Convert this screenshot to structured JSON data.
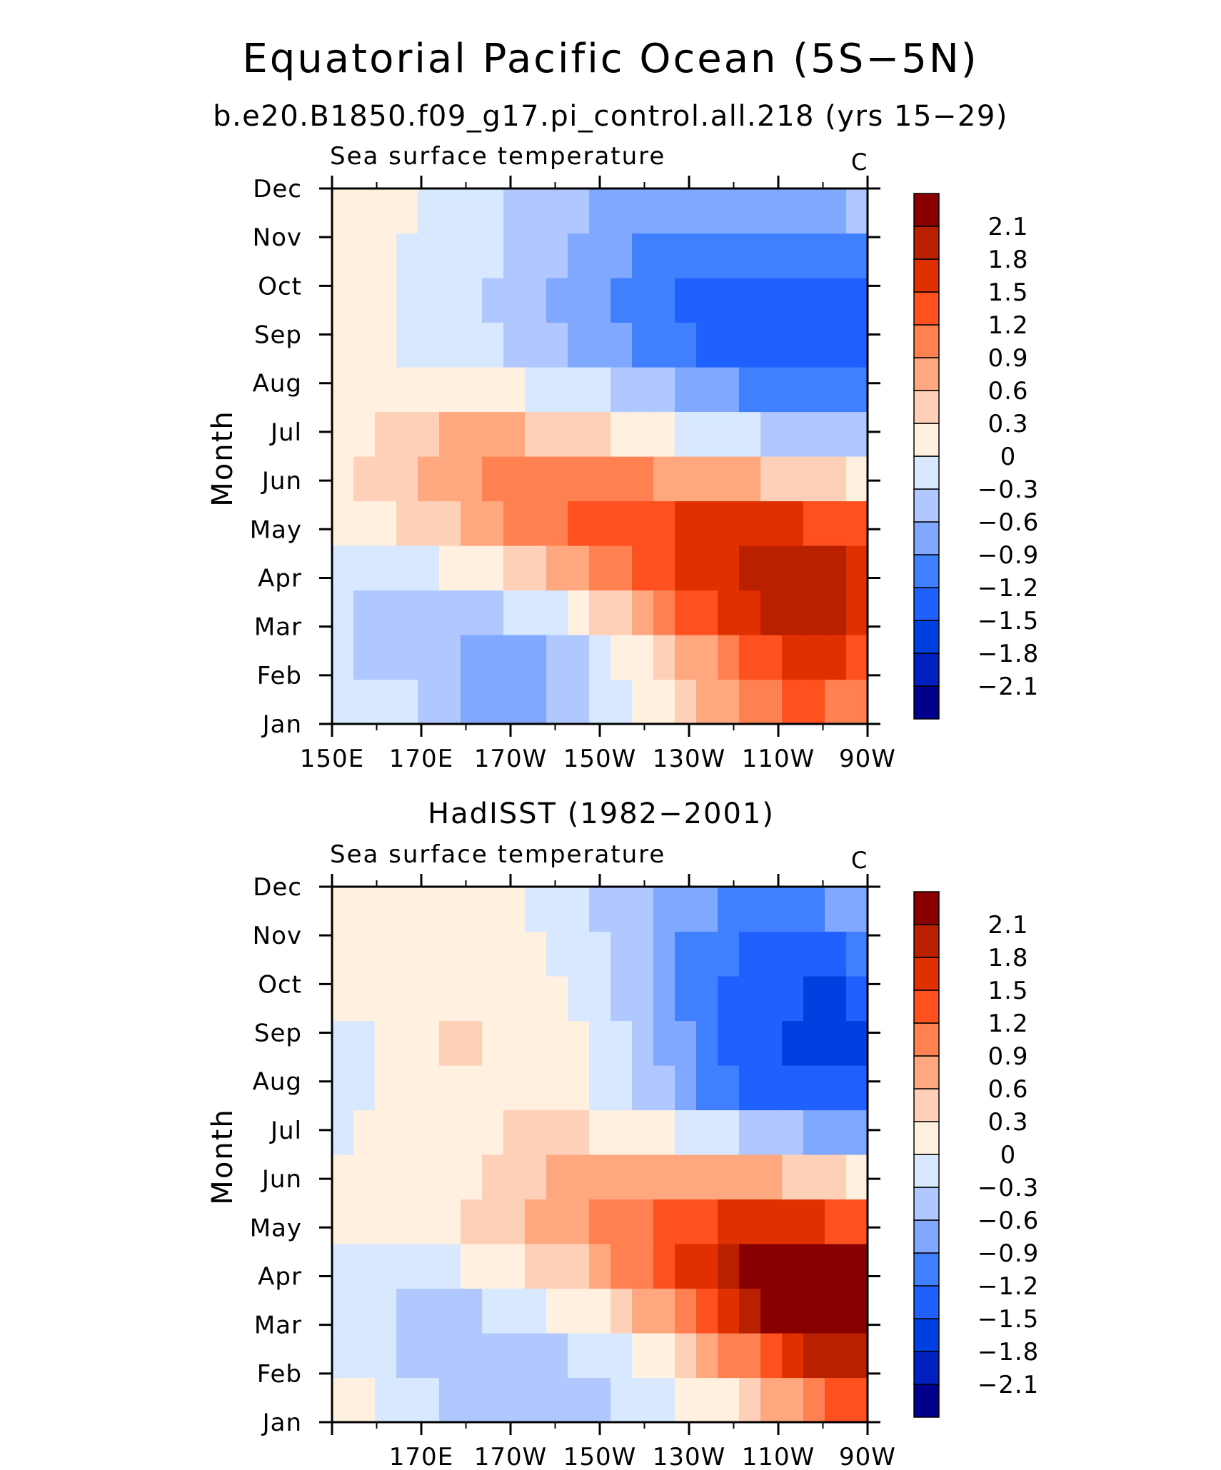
{
  "figure": {
    "title": "Equatorial Pacific Ocean (5S−5N)",
    "subtitle": "b.e20.B1850.f09_g17.pi_control.all.218 (yrs 15−29)"
  },
  "colorbar": {
    "colors": [
      "#00008c",
      "#0020c0",
      "#0040e0",
      "#2060ff",
      "#4080ff",
      "#80a8ff",
      "#b0c8ff",
      "#d8e8ff",
      "#fff0e0",
      "#ffd0b8",
      "#ffa880",
      "#ff8050",
      "#ff5020",
      "#e03000",
      "#b82000",
      "#880000"
    ],
    "labels": [
      "−2.1",
      "−1.8",
      "−1.5",
      "−1.2",
      "−0.9",
      "−0.6",
      "−0.3",
      "0",
      "0.3",
      "0.6",
      "0.9",
      "1.2",
      "1.5",
      "1.8",
      "2.1"
    ]
  },
  "chart_data": [
    {
      "type": "heatmap",
      "panel_title": "",
      "left_label": "Sea surface temperature",
      "right_label": "C",
      "ylabel": "Month",
      "xlabel": "",
      "x_ticks": [
        "150E",
        "170E",
        "170W",
        "150W",
        "130W",
        "110W",
        "90W"
      ],
      "y_ticks": [
        "Jan",
        "Feb",
        "Mar",
        "Apr",
        "May",
        "Jun",
        "Jul",
        "Aug",
        "Sep",
        "Oct",
        "Nov",
        "Dec"
      ],
      "x_lon": [
        150,
        155,
        160,
        165,
        170,
        175,
        180,
        185,
        190,
        195,
        200,
        205,
        210,
        215,
        220,
        225,
        230,
        235,
        240,
        245,
        250,
        255,
        260,
        265,
        270
      ],
      "values": [
        [
          -0.1,
          -0.1,
          -0.2,
          -0.3,
          -0.4,
          -0.5,
          -0.7,
          -0.8,
          -0.9,
          -0.8,
          -0.6,
          -0.5,
          -0.3,
          -0.2,
          0.0,
          0.2,
          0.4,
          0.6,
          0.8,
          1.0,
          1.1,
          1.2,
          1.2,
          1.1,
          1.0
        ],
        [
          -0.2,
          -0.4,
          -0.5,
          -0.6,
          -0.6,
          -0.6,
          -0.7,
          -0.8,
          -0.8,
          -0.7,
          -0.6,
          -0.4,
          -0.2,
          0.0,
          0.2,
          0.4,
          0.6,
          0.8,
          1.0,
          1.2,
          1.4,
          1.5,
          1.5,
          1.5,
          1.4
        ],
        [
          -0.2,
          -0.4,
          -0.5,
          -0.5,
          -0.5,
          -0.5,
          -0.4,
          -0.4,
          -0.3,
          -0.2,
          -0.1,
          0.1,
          0.3,
          0.5,
          0.8,
          1.0,
          1.2,
          1.4,
          1.6,
          1.7,
          1.8,
          1.8,
          1.8,
          1.8,
          1.7
        ],
        [
          -0.1,
          -0.2,
          -0.2,
          -0.2,
          -0.1,
          0.0,
          0.1,
          0.2,
          0.3,
          0.4,
          0.6,
          0.8,
          1.0,
          1.1,
          1.3,
          1.4,
          1.5,
          1.6,
          1.7,
          1.8,
          1.8,
          1.8,
          1.8,
          1.8,
          1.7
        ],
        [
          0.1,
          0.2,
          0.2,
          0.3,
          0.4,
          0.5,
          0.7,
          0.8,
          0.9,
          1.0,
          1.1,
          1.2,
          1.3,
          1.3,
          1.4,
          1.4,
          1.5,
          1.5,
          1.5,
          1.5,
          1.5,
          1.5,
          1.4,
          1.4,
          1.3
        ],
        [
          0.2,
          0.3,
          0.4,
          0.5,
          0.6,
          0.7,
          0.8,
          0.9,
          0.9,
          0.9,
          1.0,
          1.0,
          1.0,
          0.9,
          0.9,
          0.8,
          0.8,
          0.7,
          0.6,
          0.6,
          0.5,
          0.4,
          0.4,
          0.3,
          0.2
        ],
        [
          0.1,
          0.2,
          0.4,
          0.5,
          0.5,
          0.6,
          0.6,
          0.6,
          0.6,
          0.5,
          0.5,
          0.4,
          0.3,
          0.2,
          0.1,
          0.0,
          -0.1,
          -0.2,
          -0.3,
          -0.3,
          -0.4,
          -0.5,
          -0.5,
          -0.6,
          -0.6
        ],
        [
          0.1,
          0.1,
          0.1,
          0.1,
          0.1,
          0.0,
          0.0,
          0.0,
          0.0,
          -0.1,
          -0.1,
          -0.2,
          -0.3,
          -0.4,
          -0.5,
          -0.6,
          -0.7,
          -0.8,
          -0.9,
          -1.0,
          -1.1,
          -1.1,
          -1.2,
          -1.2,
          -1.2
        ],
        [
          0.1,
          0.1,
          0.0,
          -0.1,
          -0.2,
          -0.2,
          -0.3,
          -0.3,
          -0.4,
          -0.5,
          -0.6,
          -0.7,
          -0.8,
          -0.9,
          -1.0,
          -1.1,
          -1.2,
          -1.3,
          -1.4,
          -1.5,
          -1.5,
          -1.5,
          -1.5,
          -1.5,
          -1.4
        ],
        [
          0.1,
          0.1,
          0.0,
          -0.1,
          -0.2,
          -0.2,
          -0.3,
          -0.4,
          -0.5,
          -0.6,
          -0.7,
          -0.8,
          -0.9,
          -1.0,
          -1.1,
          -1.2,
          -1.4,
          -1.5,
          -1.5,
          -1.5,
          -1.5,
          -1.5,
          -1.5,
          -1.5,
          -1.4
        ],
        [
          0.1,
          0.1,
          0.0,
          -0.1,
          -0.2,
          -0.2,
          -0.3,
          -0.3,
          -0.4,
          -0.5,
          -0.6,
          -0.7,
          -0.8,
          -0.9,
          -1.0,
          -1.0,
          -1.1,
          -1.2,
          -1.2,
          -1.2,
          -1.2,
          -1.2,
          -1.2,
          -1.2,
          -1.1
        ],
        [
          0.1,
          0.1,
          0.1,
          0.0,
          -0.1,
          -0.1,
          -0.2,
          -0.3,
          -0.4,
          -0.4,
          -0.5,
          -0.6,
          -0.7,
          -0.8,
          -0.8,
          -0.8,
          -0.8,
          -0.8,
          -0.8,
          -0.8,
          -0.8,
          -0.8,
          -0.8,
          -0.7,
          -0.6
        ]
      ]
    },
    {
      "type": "heatmap",
      "panel_title": "HadISST (1982−2001)",
      "left_label": "Sea surface temperature",
      "right_label": "C",
      "ylabel": "Month",
      "xlabel": "",
      "x_ticks": [
        "170E",
        "170W",
        "150W",
        "130W",
        "110W",
        "90W"
      ],
      "y_ticks": [
        "Jan",
        "Feb",
        "Mar",
        "Apr",
        "May",
        "Jun",
        "Jul",
        "Aug",
        "Sep",
        "Oct",
        "Nov",
        "Dec"
      ],
      "x_lon": [
        150,
        155,
        160,
        165,
        170,
        175,
        180,
        185,
        190,
        195,
        200,
        205,
        210,
        215,
        220,
        225,
        230,
        235,
        240,
        245,
        250,
        255,
        260,
        265,
        270
      ],
      "values": [
        [
          0.1,
          0.0,
          -0.1,
          -0.2,
          -0.3,
          -0.4,
          -0.5,
          -0.5,
          -0.6,
          -0.6,
          -0.6,
          -0.5,
          -0.4,
          -0.3,
          -0.2,
          -0.1,
          0.0,
          0.1,
          0.2,
          0.4,
          0.6,
          0.8,
          1.0,
          1.2,
          1.3
        ],
        [
          -0.1,
          -0.2,
          -0.3,
          -0.4,
          -0.5,
          -0.5,
          -0.5,
          -0.5,
          -0.5,
          -0.5,
          -0.4,
          -0.3,
          -0.2,
          -0.1,
          0.0,
          0.2,
          0.4,
          0.6,
          0.9,
          1.1,
          1.4,
          1.6,
          1.8,
          1.9,
          2.0
        ],
        [
          -0.1,
          -0.2,
          -0.3,
          -0.4,
          -0.4,
          -0.4,
          -0.4,
          -0.3,
          -0.2,
          -0.1,
          0.0,
          0.1,
          0.2,
          0.4,
          0.6,
          0.8,
          1.1,
          1.4,
          1.7,
          1.9,
          2.1,
          2.2,
          2.3,
          2.3,
          2.2
        ],
        [
          -0.1,
          -0.1,
          -0.2,
          -0.2,
          -0.2,
          -0.1,
          0.0,
          0.1,
          0.2,
          0.3,
          0.4,
          0.5,
          0.7,
          0.9,
          1.1,
          1.3,
          1.5,
          1.7,
          1.9,
          2.1,
          2.2,
          2.3,
          2.3,
          2.2,
          2.1
        ],
        [
          0.0,
          0.0,
          0.1,
          0.1,
          0.1,
          0.2,
          0.3,
          0.4,
          0.5,
          0.6,
          0.7,
          0.8,
          0.9,
          1.0,
          1.1,
          1.2,
          1.3,
          1.4,
          1.5,
          1.6,
          1.6,
          1.6,
          1.5,
          1.4,
          1.3
        ],
        [
          0.0,
          0.1,
          0.1,
          0.1,
          0.1,
          0.2,
          0.2,
          0.3,
          0.4,
          0.5,
          0.6,
          0.6,
          0.6,
          0.7,
          0.7,
          0.7,
          0.7,
          0.7,
          0.7,
          0.6,
          0.6,
          0.5,
          0.4,
          0.3,
          0.2
        ],
        [
          -0.1,
          0.0,
          0.1,
          0.1,
          0.1,
          0.2,
          0.2,
          0.2,
          0.3,
          0.3,
          0.3,
          0.3,
          0.2,
          0.2,
          0.1,
          0.0,
          -0.1,
          -0.2,
          -0.3,
          -0.4,
          -0.5,
          -0.6,
          -0.7,
          -0.7,
          -0.8
        ],
        [
          -0.2,
          -0.1,
          0.0,
          0.1,
          0.1,
          0.2,
          0.2,
          0.2,
          0.2,
          0.2,
          0.1,
          0.0,
          -0.1,
          -0.3,
          -0.5,
          -0.6,
          -0.8,
          -1.0,
          -1.1,
          -1.3,
          -1.4,
          -1.5,
          -1.5,
          -1.5,
          -1.4
        ],
        [
          -0.1,
          -0.1,
          0.0,
          0.1,
          0.2,
          0.3,
          0.3,
          0.2,
          0.2,
          0.1,
          0.1,
          0.0,
          -0.1,
          -0.3,
          -0.5,
          -0.7,
          -0.9,
          -1.1,
          -1.3,
          -1.4,
          -1.5,
          -1.6,
          -1.7,
          -1.7,
          -1.6
        ],
        [
          0.0,
          0.0,
          0.1,
          0.1,
          0.2,
          0.2,
          0.2,
          0.2,
          0.1,
          0.1,
          0.0,
          -0.1,
          -0.2,
          -0.4,
          -0.6,
          -0.8,
          -1.0,
          -1.2,
          -1.3,
          -1.4,
          -1.5,
          -1.5,
          -1.6,
          -1.6,
          -1.5
        ],
        [
          0.1,
          0.1,
          0.1,
          0.1,
          0.1,
          0.1,
          0.1,
          0.1,
          0.0,
          0.0,
          -0.1,
          -0.2,
          -0.3,
          -0.4,
          -0.6,
          -0.8,
          -1.0,
          -1.1,
          -1.2,
          -1.3,
          -1.4,
          -1.4,
          -1.4,
          -1.3,
          -1.2
        ],
        [
          0.1,
          0.1,
          0.1,
          0.1,
          0.1,
          0.1,
          0.1,
          0.0,
          0.0,
          -0.1,
          -0.2,
          -0.3,
          -0.4,
          -0.5,
          -0.6,
          -0.7,
          -0.8,
          -0.9,
          -1.0,
          -1.0,
          -1.0,
          -1.0,
          -1.0,
          -0.9,
          -0.8
        ]
      ]
    }
  ]
}
